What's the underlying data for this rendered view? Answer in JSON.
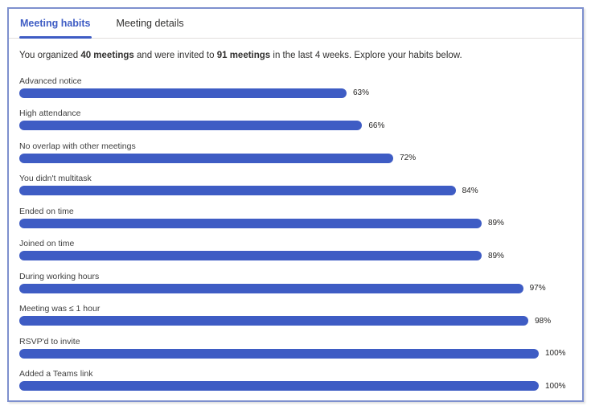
{
  "colors": {
    "accent": "#3E5CC4",
    "panel_border": "#7E90CE",
    "divider": "#E1DFDD",
    "label_text": "#3F3F3F",
    "value_text": "#252423",
    "tab_inactive": "#323130"
  },
  "tabs": [
    {
      "label": "Meeting habits",
      "active": true
    },
    {
      "label": "Meeting details",
      "active": false
    }
  ],
  "summary": {
    "parts": [
      {
        "text": "You organized ",
        "bold": false
      },
      {
        "text": "40 meetings",
        "bold": true
      },
      {
        "text": " and were invited to ",
        "bold": false
      },
      {
        "text": "91 meetings",
        "bold": true
      },
      {
        "text": " in the last 4 weeks. Explore your habits below.",
        "bold": false
      }
    ]
  },
  "chart_data": {
    "type": "bar",
    "orientation": "horizontal",
    "categories": [
      "Advanced notice",
      "High attendance",
      "No overlap with other meetings",
      "You didn't multitask",
      "Ended on time",
      "Joined on time",
      "During working hours",
      "Meeting was ≤ 1 hour",
      "RSVP'd to invite",
      "Added a Teams link"
    ],
    "values": [
      63,
      66,
      72,
      84,
      89,
      89,
      97,
      98,
      100,
      100
    ],
    "value_suffix": "%",
    "xlim": [
      0,
      100
    ],
    "bar_color": "#3E5CC4",
    "grid": false,
    "value_label_position": "end-of-bar",
    "legend": "none",
    "title": "",
    "xlabel": "",
    "ylabel": ""
  }
}
